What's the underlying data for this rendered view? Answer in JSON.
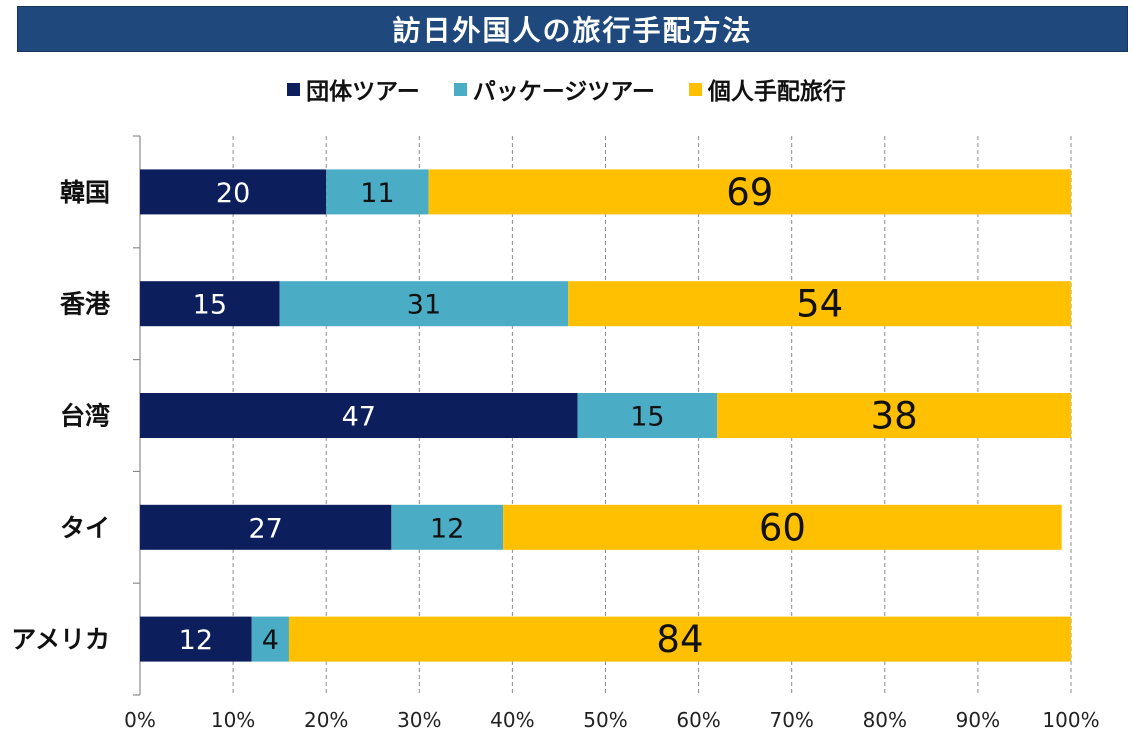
{
  "header": {
    "title": "訪日外国人の旅行手配方法"
  },
  "colors": {
    "title_bg": "#1f497d",
    "series": [
      "#0c1f5c",
      "#4bacc6",
      "#fec000"
    ],
    "label_light": "#ffffff",
    "label_dark": "#111111"
  },
  "chart_data": {
    "type": "bar",
    "orientation": "horizontal",
    "stacked": "percent",
    "title": "訪日外国人の旅行手配方法",
    "categories": [
      "韓国",
      "香港",
      "台湾",
      "タイ",
      "アメリカ"
    ],
    "series": [
      {
        "name": "団体ツアー",
        "values": [
          20,
          15,
          47,
          27,
          12
        ]
      },
      {
        "name": "パッケージツアー",
        "values": [
          11,
          31,
          15,
          12,
          4
        ]
      },
      {
        "name": "個人手配旅行",
        "values": [
          69,
          54,
          38,
          60,
          84
        ]
      }
    ],
    "xlim": [
      0,
      100
    ],
    "x_ticks": [
      "0%",
      "10%",
      "20%",
      "30%",
      "40%",
      "50%",
      "60%",
      "70%",
      "80%",
      "90%",
      "100%"
    ],
    "grid": true,
    "legend_position": "top"
  }
}
